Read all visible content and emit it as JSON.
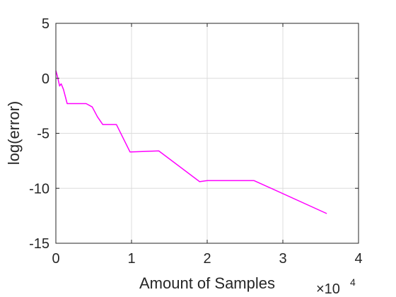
{
  "chart_data": {
    "type": "line",
    "title": "",
    "xlabel": "Amount of Samples",
    "ylabel": "log(error)",
    "x_multiplier_label": "×10",
    "x_multiplier_exponent": "4",
    "xlim": [
      0,
      4
    ],
    "ylim": [
      -15,
      5
    ],
    "xticks": [
      "0",
      "1",
      "2",
      "3",
      "4"
    ],
    "yticks": [
      "5",
      "0",
      "-5",
      "-10",
      "-15"
    ],
    "grid": true,
    "series": [
      {
        "color": "#ff00ff",
        "x": [
          0,
          0.02,
          0.05,
          0.07,
          0.1,
          0.15,
          0.2,
          0.4,
          0.48,
          0.55,
          0.62,
          0.8,
          0.98,
          0.99,
          1.36,
          1.9,
          2.0,
          2.62,
          3.58
        ],
        "y": [
          0.7,
          0.2,
          -0.7,
          -0.5,
          -1.0,
          -2.3,
          -2.3,
          -2.3,
          -2.6,
          -3.5,
          -4.2,
          -4.2,
          -6.7,
          -6.7,
          -6.6,
          -9.4,
          -9.3,
          -9.3,
          -12.3
        ]
      }
    ]
  }
}
